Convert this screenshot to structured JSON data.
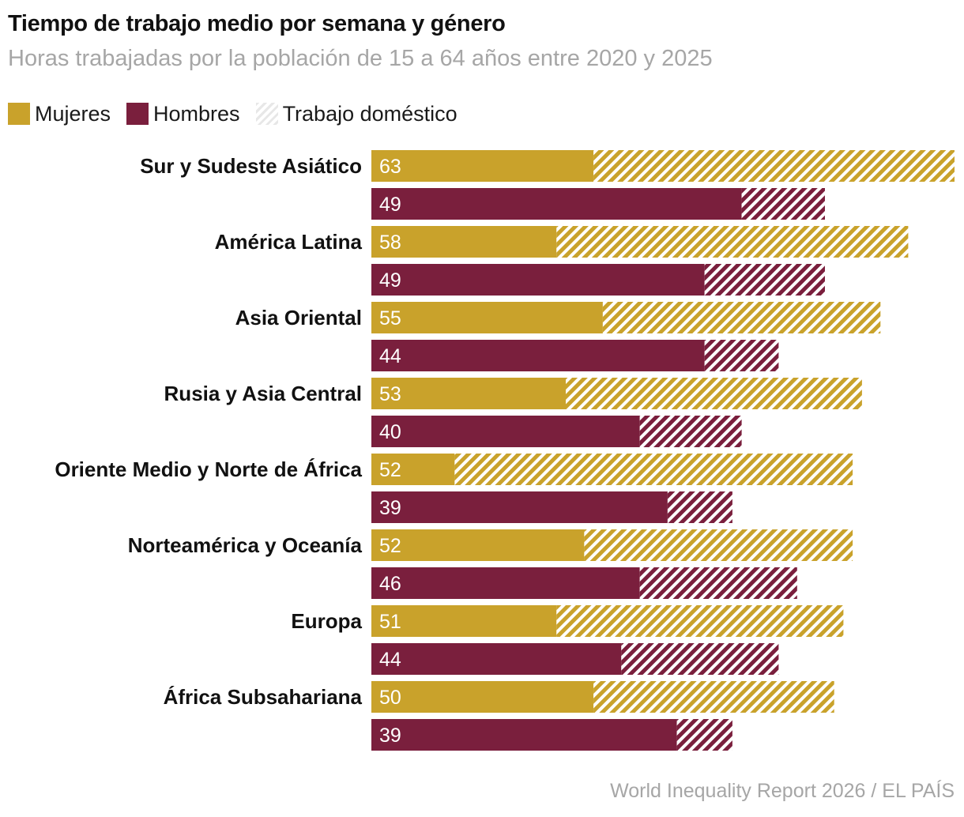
{
  "header": {
    "title": "Tiempo de trabajo medio por semana y género",
    "subtitle": "Horas trabajadas por la población de 15 a 64 años entre 2020 y 2025"
  },
  "legend": [
    {
      "label": "Mujeres",
      "color": "#c9a22b",
      "pattern": "solid"
    },
    {
      "label": "Hombres",
      "color": "#7a1f3d",
      "pattern": "solid"
    },
    {
      "label": "Trabajo doméstico",
      "color": "#e7e7e7",
      "pattern": "hatched"
    }
  ],
  "source": "World Inequality Report 2026 / EL PAÍS",
  "chart_data": {
    "type": "bar",
    "orientation": "horizontal",
    "stacked": true,
    "grid": false,
    "legend_position": "top-left",
    "title": "Tiempo de trabajo medio por semana y género",
    "subtitle": "Horas trabajadas por la población de 15 a 64 años entre 2020 y 2025",
    "xlim": [
      0,
      63
    ],
    "colors": {
      "Mujeres": "#c9a22b",
      "Hombres": "#7a1f3d"
    },
    "categories": [
      "Sur y Sudeste Asiático",
      "América Latina",
      "Asia Oriental",
      "Rusia y Asia Central",
      "Oriente Medio y Norte de África",
      "Norteamérica y Oceanía",
      "Europa",
      "África Subsahariana"
    ],
    "series": [
      {
        "name": "Mujeres",
        "totals": [
          63,
          58,
          55,
          53,
          52,
          52,
          51,
          50
        ],
        "paid_work": [
          24,
          20,
          25,
          21,
          9,
          23,
          20,
          24
        ],
        "domestic_work": [
          39,
          38,
          30,
          32,
          43,
          29,
          31,
          26
        ]
      },
      {
        "name": "Hombres",
        "totals": [
          49,
          49,
          44,
          40,
          39,
          46,
          44,
          39
        ],
        "paid_work": [
          40,
          36,
          36,
          29,
          32,
          29,
          27,
          33
        ],
        "domestic_work": [
          9,
          13,
          8,
          11,
          7,
          17,
          17,
          6
        ]
      }
    ]
  }
}
